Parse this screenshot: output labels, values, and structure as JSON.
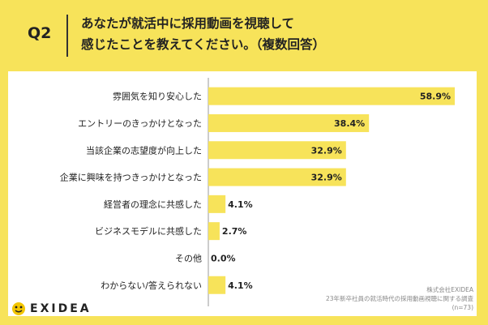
{
  "question": {
    "number": "Q2",
    "line1": "あなたが就活中に採用動画を視聴して",
    "line2": "感じたことを教えてください。（複数回答）"
  },
  "chart_data": {
    "type": "bar",
    "orientation": "horizontal",
    "title": "あなたが就活中に採用動画を視聴して感じたことを教えてください。（複数回答）",
    "categories": [
      "雰囲気を知り安心した",
      "エントリーのきっかけとなった",
      "当該企業の志望度が向上した",
      "企業に興味を持つきっかけとなった",
      "経営者の理念に共感した",
      "ビジネスモデルに共感した",
      "その他",
      "わからない/答えられない"
    ],
    "values": [
      58.9,
      38.4,
      32.9,
      32.9,
      4.1,
      2.7,
      0.0,
      4.1
    ],
    "value_labels": [
      "58.9%",
      "38.4%",
      "32.9%",
      "32.9%",
      "4.1%",
      "2.7%",
      "0.0%",
      "4.1%"
    ],
    "unit": "%",
    "xlim": [
      0,
      58.9
    ],
    "bar_color": "#f7e35a"
  },
  "logo": {
    "text": "EXIDEA"
  },
  "source": {
    "company": "株式会社EXIDEA",
    "survey": "23年新卒社員の就活時代の採用動画視聴に関する調査",
    "sample": "(n=73)"
  }
}
